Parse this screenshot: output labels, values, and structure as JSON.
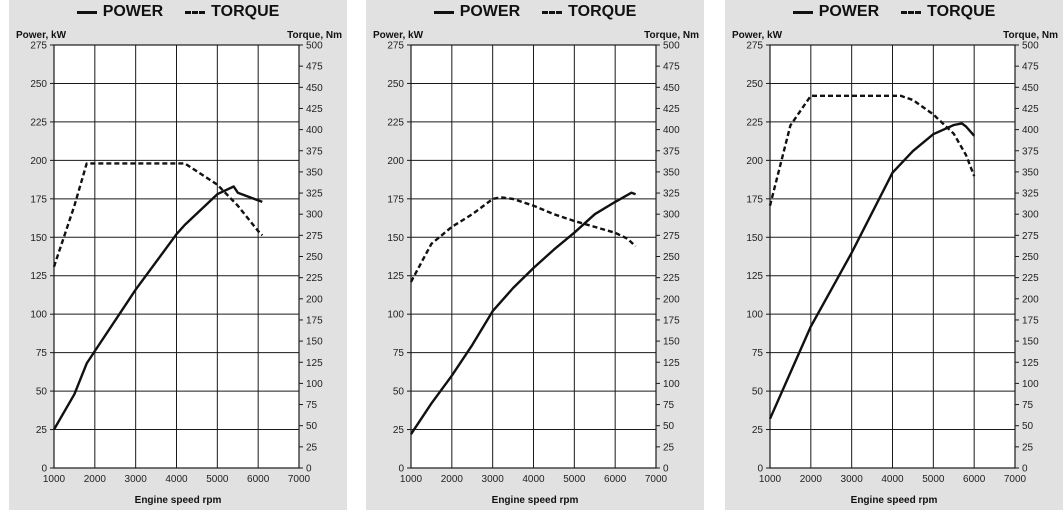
{
  "colors": {
    "panel_bg": "#e1e1e1",
    "plot_bg": "#ffffff",
    "line": "#111111",
    "grid": "#1a1a1a"
  },
  "legend": {
    "power_label": "POWER",
    "torque_label": "TORQUE"
  },
  "chart_data": [
    {
      "type": "line",
      "title": "",
      "xlabel": "Engine speed rpm",
      "ylabel_left": "Power, kW",
      "ylabel_right": "Torque, Nm",
      "xlim": [
        1000,
        7000
      ],
      "ylim_left": [
        0,
        275
      ],
      "ylim_right": [
        0,
        500
      ],
      "x_ticks": [
        1000,
        2000,
        3000,
        4000,
        5000,
        6000,
        7000
      ],
      "y_left_ticks": [
        0,
        25,
        50,
        75,
        100,
        125,
        150,
        175,
        200,
        225,
        250,
        275
      ],
      "y_right_ticks": [
        0,
        25,
        50,
        75,
        100,
        125,
        150,
        175,
        200,
        225,
        250,
        275,
        300,
        325,
        350,
        375,
        400,
        425,
        450,
        475,
        500
      ],
      "grid": true,
      "series": [
        {
          "name": "POWER",
          "axis": "left",
          "style": "solid",
          "points": [
            [
              1000,
              25
            ],
            [
              1500,
              48
            ],
            [
              1800,
              68
            ],
            [
              2000,
              76
            ],
            [
              3000,
              116
            ],
            [
              4000,
              152
            ],
            [
              4200,
              158
            ],
            [
              5000,
              178
            ],
            [
              5400,
              183
            ],
            [
              5500,
              179
            ],
            [
              6000,
              174
            ],
            [
              6100,
              173
            ]
          ]
        },
        {
          "name": "TORQUE",
          "axis": "right",
          "style": "dashed",
          "points": [
            [
              1000,
              238
            ],
            [
              1500,
              310
            ],
            [
              1800,
              360
            ],
            [
              2000,
              360
            ],
            [
              3000,
              360
            ],
            [
              4000,
              360
            ],
            [
              4200,
              360
            ],
            [
              5000,
              335
            ],
            [
              5500,
              310
            ],
            [
              6000,
              280
            ],
            [
              6100,
              275
            ]
          ]
        }
      ]
    },
    {
      "type": "line",
      "title": "",
      "xlabel": "Engine speed rpm",
      "ylabel_left": "Power, kW",
      "ylabel_right": "Torque, Nm",
      "xlim": [
        1000,
        7000
      ],
      "ylim_left": [
        0,
        275
      ],
      "ylim_right": [
        0,
        500
      ],
      "x_ticks": [
        1000,
        2000,
        3000,
        4000,
        5000,
        6000,
        7000
      ],
      "y_left_ticks": [
        0,
        25,
        50,
        75,
        100,
        125,
        150,
        175,
        200,
        225,
        250,
        275
      ],
      "y_right_ticks": [
        0,
        25,
        50,
        75,
        100,
        125,
        150,
        175,
        200,
        225,
        250,
        275,
        300,
        325,
        350,
        375,
        400,
        425,
        450,
        475,
        500
      ],
      "grid": true,
      "series": [
        {
          "name": "POWER",
          "axis": "left",
          "style": "solid",
          "points": [
            [
              1000,
              22
            ],
            [
              1500,
              42
            ],
            [
              2000,
              60
            ],
            [
              2500,
              80
            ],
            [
              3000,
              102
            ],
            [
              3200,
              108
            ],
            [
              3500,
              117
            ],
            [
              4000,
              130
            ],
            [
              4500,
              142
            ],
            [
              5000,
              153
            ],
            [
              5500,
              165
            ],
            [
              6000,
              173
            ],
            [
              6400,
              179
            ],
            [
              6500,
              178
            ]
          ]
        },
        {
          "name": "TORQUE",
          "axis": "right",
          "style": "dashed",
          "points": [
            [
              1000,
              220
            ],
            [
              1500,
              265
            ],
            [
              2000,
              285
            ],
            [
              2500,
              300
            ],
            [
              3000,
              318
            ],
            [
              3200,
              320
            ],
            [
              3500,
              318
            ],
            [
              4000,
              310
            ],
            [
              4500,
              300
            ],
            [
              5000,
              292
            ],
            [
              5500,
              285
            ],
            [
              6000,
              278
            ],
            [
              6300,
              271
            ],
            [
              6500,
              262
            ]
          ]
        }
      ]
    },
    {
      "type": "line",
      "title": "",
      "xlabel": "Engine speed rpm",
      "ylabel_left": "Power, kW",
      "ylabel_right": "Torque, Nm",
      "xlim": [
        1000,
        7000
      ],
      "ylim_left": [
        0,
        275
      ],
      "ylim_right": [
        0,
        500
      ],
      "x_ticks": [
        1000,
        2000,
        3000,
        4000,
        5000,
        6000,
        7000
      ],
      "y_left_ticks": [
        0,
        25,
        50,
        75,
        100,
        125,
        150,
        175,
        200,
        225,
        250,
        275
      ],
      "y_right_ticks": [
        0,
        25,
        50,
        75,
        100,
        125,
        150,
        175,
        200,
        225,
        250,
        275,
        300,
        325,
        350,
        375,
        400,
        425,
        450,
        475,
        500
      ],
      "grid": true,
      "series": [
        {
          "name": "POWER",
          "axis": "left",
          "style": "solid",
          "points": [
            [
              1000,
              32
            ],
            [
              1500,
              62
            ],
            [
              2000,
              92
            ],
            [
              2500,
              116
            ],
            [
              3000,
              140
            ],
            [
              3500,
              166
            ],
            [
              4000,
              192
            ],
            [
              4500,
              206
            ],
            [
              5000,
              217
            ],
            [
              5500,
              223
            ],
            [
              5700,
              224
            ],
            [
              5800,
              222
            ],
            [
              6000,
              216
            ]
          ]
        },
        {
          "name": "TORQUE",
          "axis": "right",
          "style": "dashed",
          "points": [
            [
              1000,
              310
            ],
            [
              1500,
              405
            ],
            [
              2000,
              440
            ],
            [
              2500,
              440
            ],
            [
              3000,
              440
            ],
            [
              3500,
              440
            ],
            [
              4000,
              440
            ],
            [
              4200,
              440
            ],
            [
              4500,
              435
            ],
            [
              5000,
              418
            ],
            [
              5500,
              395
            ],
            [
              5800,
              370
            ],
            [
              6000,
              345
            ]
          ]
        }
      ]
    }
  ]
}
